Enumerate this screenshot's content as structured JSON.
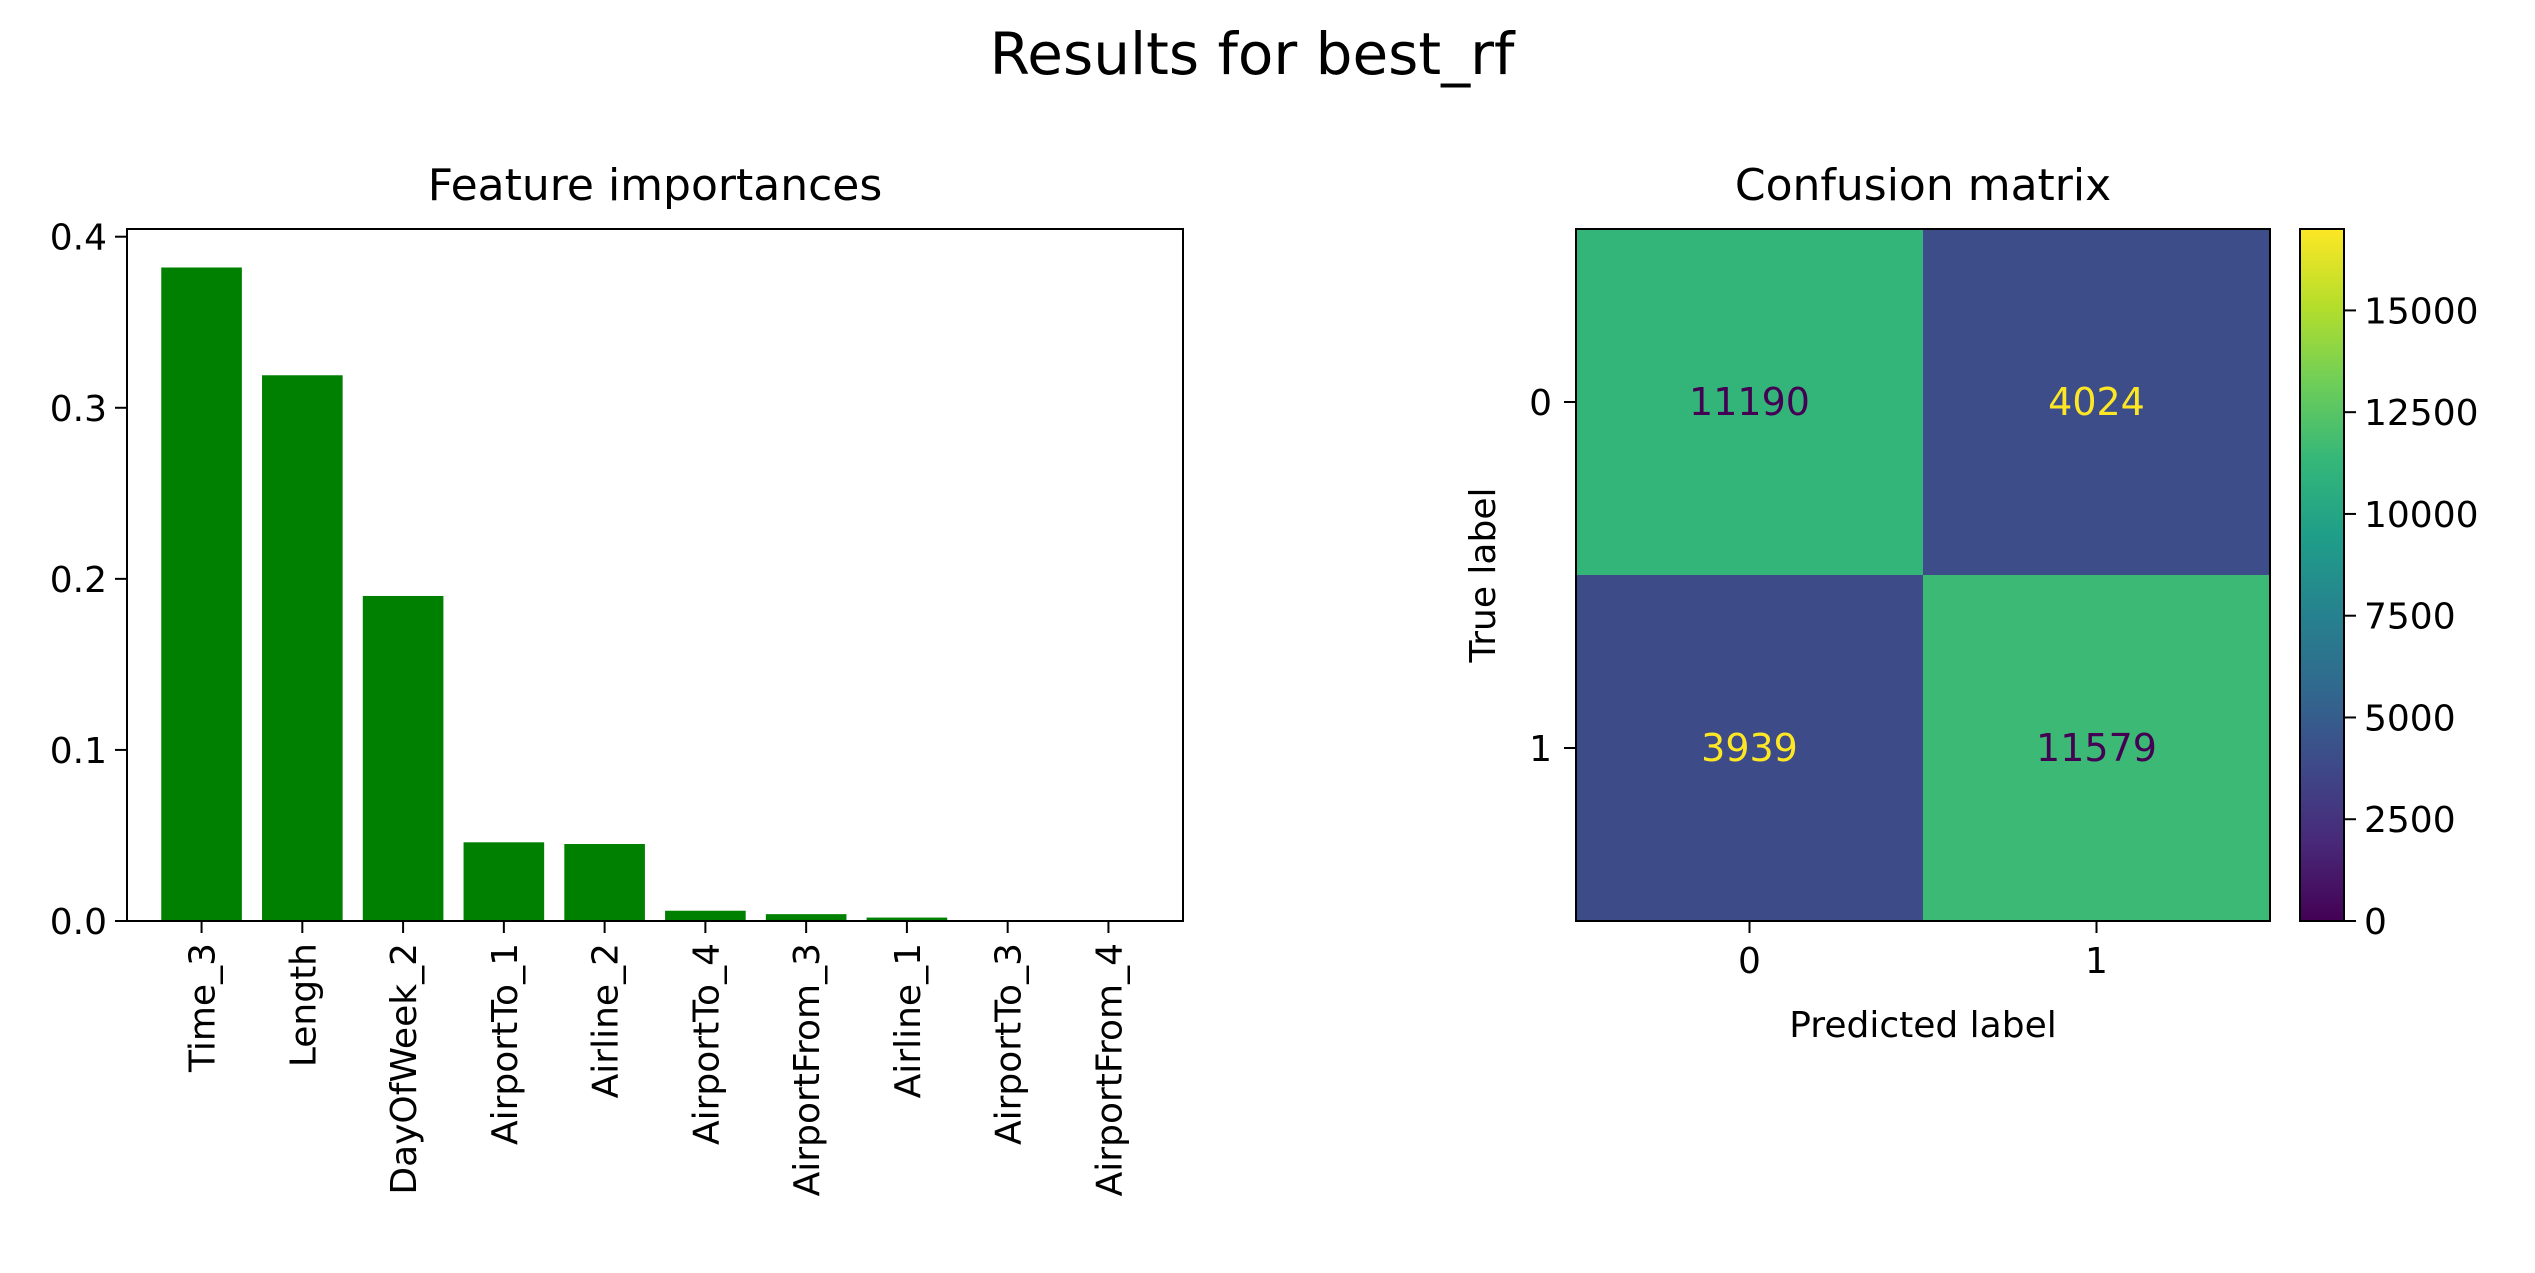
{
  "suptitle": "Results for best_rf",
  "colors": {
    "bar": "#008000",
    "viridis": [
      "#440154",
      "#482878",
      "#3e4989",
      "#31688e",
      "#26828e",
      "#1f9e89",
      "#35b779",
      "#6ece58",
      "#b5de2b",
      "#fde725"
    ],
    "dark_text": "#440154",
    "light_text": "#fde725"
  },
  "chart_data": [
    {
      "type": "bar",
      "title": "Feature importances",
      "xlabel": "",
      "ylabel": "",
      "categories": [
        "Time_3",
        "Length",
        "DayOfWeek_2",
        "AirportTo_1",
        "Airline_2",
        "AirportTo_4",
        "AirportFrom_3",
        "Airline_1",
        "AirportTo_3",
        "AirportFrom_4"
      ],
      "values": [
        0.382,
        0.319,
        0.19,
        0.046,
        0.045,
        0.006,
        0.004,
        0.002,
        0.0003,
        0.0002
      ],
      "ylim": [
        0,
        0.4
      ],
      "yticks": [
        "0.0",
        "0.1",
        "0.2",
        "0.3",
        "0.4"
      ],
      "grid": false,
      "legend": "none"
    },
    {
      "type": "heatmap",
      "title": "Confusion matrix",
      "xlabel": "Predicted label",
      "ylabel": "True label",
      "x_categories": [
        "0",
        "1"
      ],
      "y_categories": [
        "0",
        "1"
      ],
      "values": [
        [
          11190,
          4024
        ],
        [
          3939,
          11579
        ]
      ],
      "colorbar": {
        "range": [
          0,
          17000
        ],
        "ticks": [
          "0",
          "2500",
          "5000",
          "7500",
          "10000",
          "12500",
          "15000"
        ]
      },
      "colormap": "viridis"
    }
  ]
}
